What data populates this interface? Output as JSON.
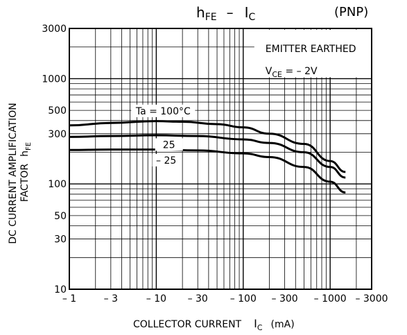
{
  "chart_data": {
    "type": "line",
    "title": {
      "left": "h",
      "left_sub": "FE",
      "dash": "–",
      "right": "I",
      "right_sub": "C",
      "tag": "(PNP)"
    },
    "xlabel": {
      "text": "COLLECTOR CURRENT",
      "symbol": "I",
      "symbol_sub": "C",
      "unit": "(mA)"
    },
    "ylabel": {
      "line1": "DC CURRENT AMPLIFICATION",
      "line2": "FACTOR",
      "symbol": "h",
      "symbol_sub": "FE"
    },
    "x_scale": "log",
    "y_scale": "log",
    "xlim": [
      1,
      3000
    ],
    "ylim": [
      10,
      3000
    ],
    "x_ticks": [
      {
        "value": 1,
        "label": "– 1"
      },
      {
        "value": 3,
        "label": "– 3"
      },
      {
        "value": 10,
        "label": "– 10"
      },
      {
        "value": 30,
        "label": "– 30"
      },
      {
        "value": 100,
        "label": "– 100"
      },
      {
        "value": 300,
        "label": "– 300"
      },
      {
        "value": 1000,
        "label": "– 1000"
      },
      {
        "value": 3000,
        "label": "– 3000"
      }
    ],
    "y_ticks": [
      {
        "value": 10,
        "label": "10"
      },
      {
        "value": 30,
        "label": "30"
      },
      {
        "value": 50,
        "label": "50"
      },
      {
        "value": 100,
        "label": "100"
      },
      {
        "value": 300,
        "label": "300"
      },
      {
        "value": 500,
        "label": "500"
      },
      {
        "value": 1000,
        "label": "1000"
      },
      {
        "value": 3000,
        "label": "3000"
      }
    ],
    "annotation": {
      "line1": "EMITTER EARTHED",
      "line2_prefix": "V",
      "line2_sub": "CE",
      "line2_value": " = – 2V"
    },
    "grid": true,
    "series": [
      {
        "name": "Ta = 100°C",
        "x": [
          1,
          3,
          10,
          20,
          50,
          100,
          200,
          500,
          1000,
          1500
        ],
        "y": [
          360,
          380,
          395,
          390,
          370,
          345,
          300,
          240,
          165,
          130
        ]
      },
      {
        "name": "25",
        "x": [
          1,
          3,
          10,
          30,
          100,
          200,
          500,
          1000,
          1500
        ],
        "y": [
          280,
          285,
          290,
          285,
          265,
          245,
          200,
          145,
          115
        ]
      },
      {
        "name": "– 25",
        "x": [
          1,
          3,
          10,
          30,
          100,
          200,
          500,
          1000,
          1500
        ],
        "y": [
          210,
          212,
          212,
          208,
          195,
          180,
          145,
          105,
          83
        ]
      }
    ]
  }
}
